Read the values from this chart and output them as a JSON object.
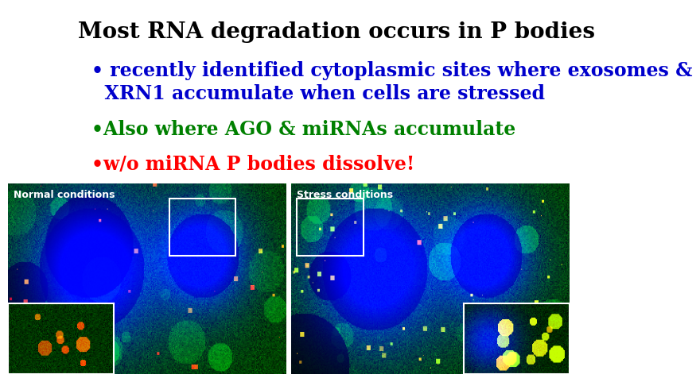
{
  "title": "Most RNA degradation occurs in P bodies",
  "title_color": "#000000",
  "title_fontsize": 20,
  "bullet1": "• recently identified cytoplasmic sites where exosomes &\n  XRN1 accumulate when cells are stressed",
  "bullet1_color": "#0000CC",
  "bullet2": "•Also where AGO & miRNAs accumulate",
  "bullet2_color": "#008000",
  "bullet3": "•w/o miRNA P bodies dissolve!",
  "bullet3_color": "#FF0000",
  "bullet_fontsize": 17,
  "bg_color": "#FFFFFF",
  "image_bg": "#000000",
  "label_normal": "Normal conditions",
  "label_stress": "Stress conditions",
  "label_fontsize": 9,
  "label_color": "#FFFFFF"
}
